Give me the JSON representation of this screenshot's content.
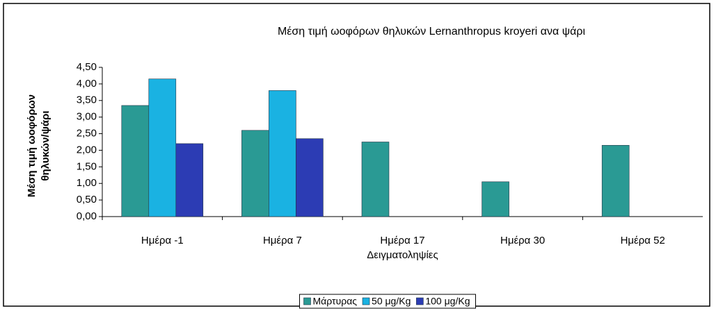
{
  "chart_data": {
    "type": "bar",
    "title": "Μέση τιμή ωοφόρων θηλυκών Lernanthropus kroyeri ανα ψάρι",
    "ylabel": [
      "Μέση τιμή ωοφόρων",
      "θηλυκών/ψάρι"
    ],
    "xlabel": "Δειγματοληψίες",
    "categories": [
      "Ημέρα -1",
      "Ημέρα 7",
      "Ημέρα 17",
      "Ημέρα 30",
      "Ημέρα 52"
    ],
    "series": [
      {
        "name": "Μάρτυρας",
        "color": "#2a9a94",
        "values": [
          3.35,
          2.6,
          2.25,
          1.05,
          2.15
        ]
      },
      {
        "name": "50 μg/Kg",
        "color": "#1ab2e2",
        "values": [
          4.15,
          3.8,
          null,
          null,
          null
        ]
      },
      {
        "name": "100 μg/Kg",
        "color": "#2c3cb4",
        "values": [
          2.2,
          2.35,
          null,
          null,
          null
        ]
      }
    ],
    "ylim": [
      0,
      4.5
    ],
    "yticks": [
      {
        "value": 0,
        "label": "0,00"
      },
      {
        "value": 0.5,
        "label": "0,50"
      },
      {
        "value": 1,
        "label": "1,00"
      },
      {
        "value": 1.5,
        "label": "1,50"
      },
      {
        "value": 2,
        "label": "2,00"
      },
      {
        "value": 2.5,
        "label": "2,50"
      },
      {
        "value": 3,
        "label": "3,00"
      },
      {
        "value": 3.5,
        "label": "3,50"
      },
      {
        "value": 4,
        "label": "4,00"
      },
      {
        "value": 4.5,
        "label": "4,50"
      }
    ],
    "legend": "bottom"
  }
}
